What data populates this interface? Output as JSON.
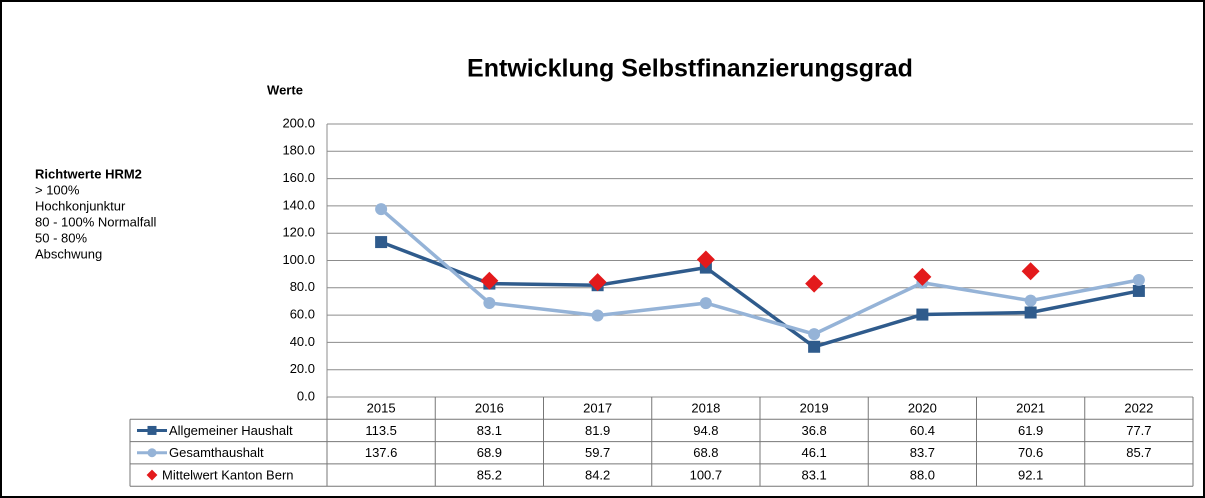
{
  "chart_data": {
    "type": "line",
    "title": "Entwicklung Selbstfinanzierungsgrad",
    "y_label": "Werte",
    "side_note": {
      "title": "Richtwerte HRM2",
      "lines": [
        "> 100%",
        "Hochkonjunktur",
        "80 - 100%  Normalfall",
        "50 - 80%",
        "Abschwung"
      ]
    },
    "categories": [
      "2015",
      "2016",
      "2017",
      "2018",
      "2019",
      "2020",
      "2021",
      "2022"
    ],
    "series": [
      {
        "name": "Allgemeiner Haushalt",
        "color": "#2f5b8c",
        "marker": "square",
        "show_line": true,
        "values": [
          113.5,
          83.1,
          81.9,
          94.8,
          36.8,
          60.4,
          61.9,
          77.7
        ]
      },
      {
        "name": "Gesamthaushalt",
        "color": "#95b3d7",
        "marker": "circle",
        "show_line": true,
        "values": [
          137.6,
          68.9,
          59.7,
          68.8,
          46.1,
          83.7,
          70.6,
          85.7
        ]
      },
      {
        "name": "Mittelwert Kanton Bern",
        "color": "#e31a1c",
        "marker": "diamond",
        "show_line": false,
        "values": [
          null,
          85.2,
          84.2,
          100.7,
          83.1,
          88,
          92.1,
          null
        ],
        "value_labels": [
          null,
          "85.2",
          "84.2",
          "100.7",
          "83.1",
          "88.0",
          "92.1",
          null
        ]
      }
    ],
    "ylim": [
      0,
      200
    ],
    "yticks": [
      {
        "value": 0,
        "label": "0.0"
      },
      {
        "value": 20,
        "label": "20.0"
      },
      {
        "value": 40,
        "label": "40.0"
      },
      {
        "value": 60,
        "label": "60.0"
      },
      {
        "value": 80,
        "label": "80.0"
      },
      {
        "value": 100,
        "label": "100.0"
      },
      {
        "value": 120,
        "label": "120.0"
      },
      {
        "value": 140,
        "label": "140.0"
      },
      {
        "value": 160,
        "label": "160.0"
      },
      {
        "value": 180,
        "label": "180.0"
      },
      {
        "value": 200,
        "label": "200.0"
      }
    ],
    "grid": true
  }
}
